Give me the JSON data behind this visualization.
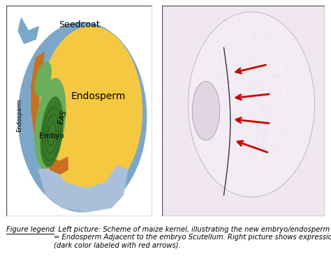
{
  "fig_background": "#ffffff",
  "right_panel_bg": "#f0e8ee",
  "seedcoat_label": "Seedcoat",
  "endosperm_label": "Endosperm",
  "eas_label": "EAS",
  "embyo_label": "Embyo",
  "endosperm_side_label": "Endosperm",
  "colors": {
    "blue_outer": "#7BA7C9",
    "yellow_endosperm": "#F5C842",
    "orange_eas": "#C87020",
    "green_embryo_outer": "#6BAF5A",
    "green_embryo_inner": "#3A7A2A",
    "light_blue_base": "#AABFDA",
    "red_arrow": "#CC0000",
    "panel_border": "#555555"
  },
  "legend_title": "Figure legend",
  "legend_rest": ": Left picture: Scheme of maize kernel, illustrating the new embryo/endosperm interface: the EAS\n= Endosperm Adjacent to the embryo Scutellum. Right picture shows expression activity of an EAS marker gene\n(dark color labeled with red arrows).",
  "legend_fontsize": 7.2,
  "label_fontsize": 9
}
